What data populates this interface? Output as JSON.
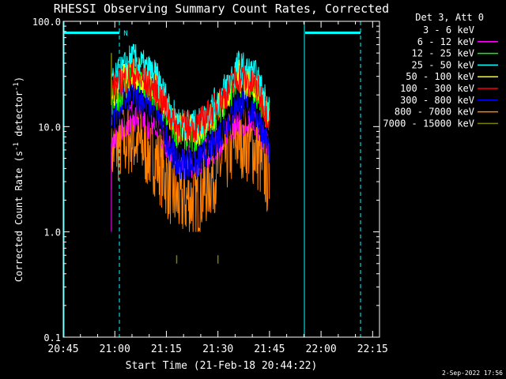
{
  "chart_data": {
    "type": "line",
    "title": "RHESSI Observing Summary Count Rates, Corrected",
    "xlabel": "Start Time (21-Feb-18 20:44:22)",
    "ylabel_main": "Corrected Count Rate (s",
    "ylabel_sup1": "-1",
    "ylabel_mid": " detector",
    "ylabel_sup2": "-1",
    "ylabel_end": ")",
    "yscale": "log",
    "ylim": [
      0.1,
      100.0
    ],
    "xlim_min": [
      0,
      92
    ],
    "y_ticks": [
      "0.1",
      "1.0",
      "10.0",
      "100.0"
    ],
    "x_ticks": [
      "20:45",
      "21:00",
      "21:15",
      "21:30",
      "21:45",
      "22:00",
      "22:15"
    ],
    "legend_title": "Det 3, Att 0",
    "legend_position": "top-right",
    "flag_label": "N",
    "timestamp": "2-Sep-2022 17:56",
    "series": [
      {
        "name": "3 - 6 keV",
        "color": "#000000",
        "points": [
          [
            14,
            11
          ],
          [
            20,
            17
          ],
          [
            27,
            13
          ],
          [
            33,
            6
          ],
          [
            39,
            5
          ],
          [
            45,
            8
          ],
          [
            51,
            15
          ],
          [
            56,
            13
          ],
          [
            60,
            8
          ]
        ]
      },
      {
        "name": "6 - 12 keV",
        "color": "#ff00ff",
        "points": [
          [
            14,
            8
          ],
          [
            20,
            13
          ],
          [
            27,
            10
          ],
          [
            33,
            5
          ],
          [
            39,
            4.5
          ],
          [
            45,
            7
          ],
          [
            51,
            12
          ],
          [
            56,
            10
          ],
          [
            60,
            7
          ]
        ]
      },
      {
        "name": "12 - 25 keV",
        "color": "#00ff00",
        "points": [
          [
            14,
            16
          ],
          [
            20,
            30
          ],
          [
            27,
            20
          ],
          [
            33,
            9
          ],
          [
            39,
            8
          ],
          [
            45,
            14
          ],
          [
            51,
            28
          ],
          [
            56,
            22
          ],
          [
            60,
            12
          ]
        ]
      },
      {
        "name": "25 - 50 keV",
        "color": "#00ffff",
        "points": [
          [
            14,
            25
          ],
          [
            20,
            45
          ],
          [
            27,
            30
          ],
          [
            33,
            11
          ],
          [
            39,
            10
          ],
          [
            45,
            18
          ],
          [
            51,
            38
          ],
          [
            56,
            30
          ],
          [
            60,
            15
          ]
        ]
      },
      {
        "name": "50 - 100 keV",
        "color": "#ffff00",
        "points": [
          [
            14,
            20
          ],
          [
            20,
            35
          ],
          [
            27,
            24
          ],
          [
            33,
            10
          ],
          [
            39,
            9
          ],
          [
            45,
            15
          ],
          [
            51,
            30
          ],
          [
            56,
            25
          ],
          [
            60,
            12
          ]
        ]
      },
      {
        "name": "100 - 300 keV",
        "color": "#ff0000",
        "points": [
          [
            14,
            22
          ],
          [
            20,
            32
          ],
          [
            27,
            22
          ],
          [
            33,
            10
          ],
          [
            39,
            10
          ],
          [
            45,
            16
          ],
          [
            51,
            30
          ],
          [
            56,
            24
          ],
          [
            60,
            12
          ]
        ]
      },
      {
        "name": "300 - 800 keV",
        "color": "#0000ff",
        "points": [
          [
            14,
            13
          ],
          [
            20,
            21
          ],
          [
            27,
            15
          ],
          [
            33,
            4.5
          ],
          [
            39,
            4.5
          ],
          [
            45,
            8
          ],
          [
            51,
            17
          ],
          [
            56,
            14
          ],
          [
            60,
            6
          ]
        ]
      },
      {
        "name": "800 - 7000 keV",
        "color": "#ff8000",
        "points": [
          [
            14,
            6
          ],
          [
            20,
            8
          ],
          [
            27,
            5
          ],
          [
            33,
            2
          ],
          [
            39,
            2
          ],
          [
            45,
            4
          ],
          [
            51,
            8
          ],
          [
            56,
            6
          ],
          [
            60,
            3
          ]
        ]
      },
      {
        "name": "7000 - 15000 keV",
        "color": "#808000",
        "points": [
          [
            14,
            40
          ],
          [
            33,
            0.6
          ],
          [
            45,
            0.6
          ]
        ]
      }
    ]
  }
}
